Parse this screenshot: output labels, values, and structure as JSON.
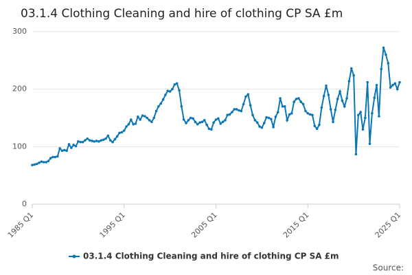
{
  "chart_data": {
    "type": "line",
    "title": "03.1.4 Clothing Cleaning and hire of clothing CP SA £m",
    "source": "Source:",
    "categories": [
      "1985 Q1",
      null,
      null,
      null,
      null,
      null,
      null,
      null,
      null,
      null,
      null,
      null,
      null,
      null,
      null,
      null,
      null,
      null,
      null,
      null,
      null,
      null,
      null,
      null,
      null,
      null,
      null,
      null,
      null,
      null,
      null,
      null,
      null,
      null,
      null,
      null,
      null,
      null,
      null,
      null,
      "1995 Q1",
      null,
      null,
      null,
      null,
      null,
      null,
      null,
      null,
      null,
      null,
      null,
      null,
      null,
      null,
      null,
      null,
      null,
      null,
      null,
      null,
      null,
      null,
      null,
      null,
      null,
      null,
      null,
      null,
      null,
      null,
      null,
      null,
      null,
      null,
      null,
      null,
      null,
      null,
      null,
      "2005 Q1",
      null,
      null,
      null,
      null,
      null,
      null,
      null,
      null,
      null,
      null,
      null,
      null,
      null,
      null,
      null,
      null,
      null,
      null,
      null,
      null,
      null,
      null,
      null,
      null,
      null,
      null,
      null,
      null,
      null,
      null,
      null,
      null,
      null,
      null,
      null,
      null,
      null,
      null,
      null,
      "2015 Q1",
      null,
      null,
      null,
      null,
      null,
      null,
      null,
      null,
      null,
      null,
      null,
      null,
      null,
      null,
      null,
      null,
      null,
      null,
      null,
      null,
      null,
      null,
      null,
      null,
      null,
      null,
      null,
      null,
      null,
      null,
      null,
      null,
      null,
      null,
      null,
      null,
      null,
      null,
      null,
      "2025 Q1"
    ],
    "series": [
      {
        "name": "03.1.4 Clothing Cleaning and hire of clothing CP SA £m",
        "color": "#0b76b5",
        "values": [
          68,
          69,
          70,
          72,
          74,
          73,
          73,
          75,
          80,
          82,
          82,
          83,
          97,
          93,
          94,
          93,
          104,
          98,
          103,
          101,
          109,
          108,
          108,
          111,
          114,
          111,
          110,
          109,
          110,
          109,
          111,
          112,
          114,
          119,
          111,
          108,
          113,
          118,
          124,
          125,
          128,
          135,
          139,
          147,
          139,
          140,
          152,
          147,
          154,
          153,
          150,
          146,
          143,
          150,
          162,
          170,
          175,
          182,
          190,
          197,
          196,
          200,
          208,
          210,
          198,
          170,
          147,
          141,
          146,
          150,
          149,
          143,
          139,
          142,
          143,
          146,
          138,
          131,
          130,
          142,
          147,
          149,
          140,
          143,
          146,
          155,
          156,
          160,
          165,
          165,
          163,
          162,
          174,
          187,
          191,
          172,
          155,
          146,
          142,
          135,
          133,
          141,
          151,
          150,
          148,
          134,
          152,
          160,
          184,
          170,
          170,
          146,
          156,
          158,
          178,
          183,
          184,
          178,
          174,
          162,
          158,
          156,
          155,
          136,
          131,
          138,
          168,
          188,
          206,
          190,
          165,
          143,
          164,
          183,
          196,
          180,
          170,
          184,
          214,
          236,
          224,
          87,
          155,
          160,
          130,
          150,
          212,
          105,
          158,
          185,
          207,
          153,
          235,
          272,
          260,
          245,
          203,
          207,
          210,
          200,
          212
        ]
      }
    ],
    "ylim": [
      0,
      300
    ],
    "yticks": [
      0,
      100,
      200,
      300
    ],
    "grid": true
  }
}
